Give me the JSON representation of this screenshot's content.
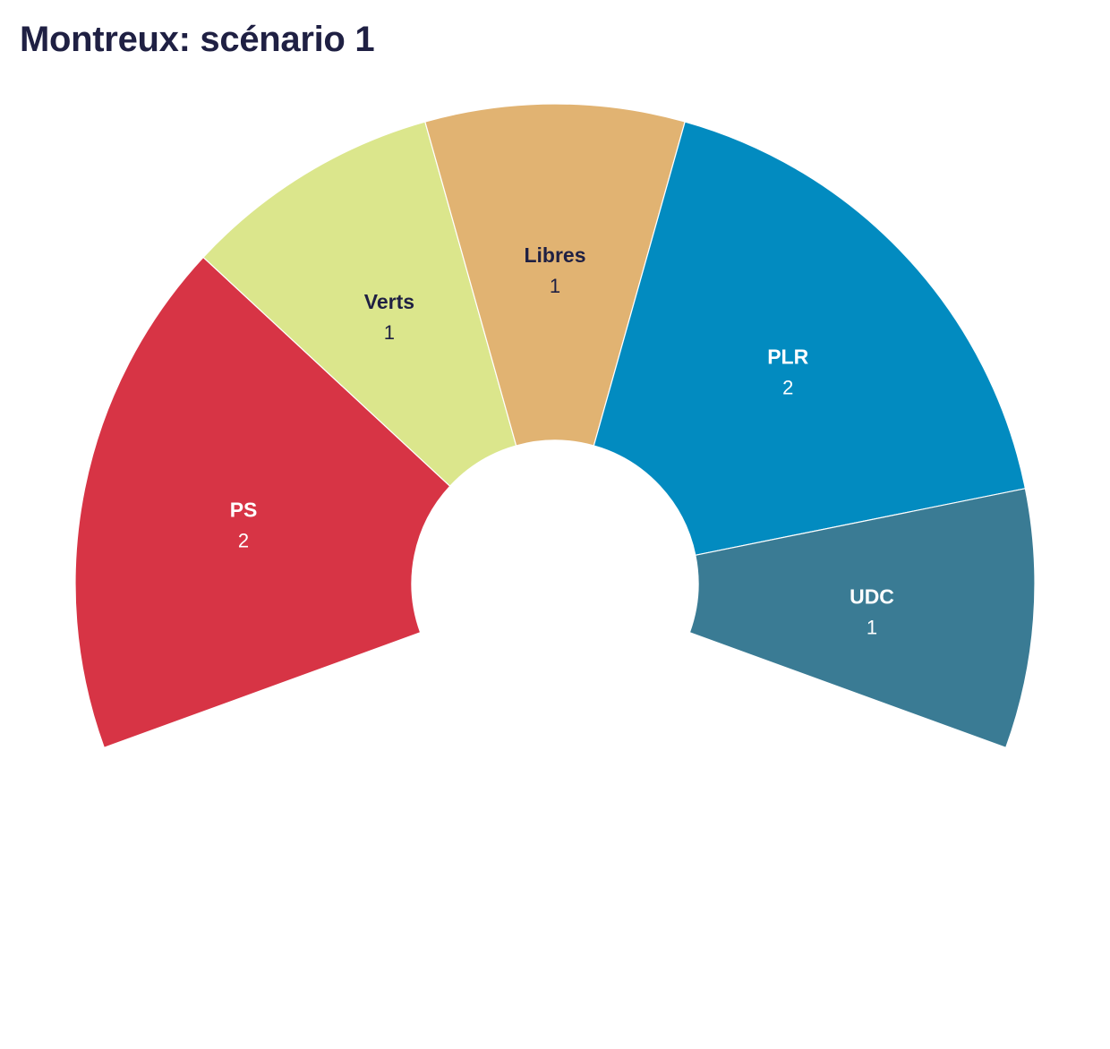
{
  "chart_data": {
    "type": "pie",
    "variant": "half-donut",
    "title": "Montreux: scénario 1",
    "total_seats": 7,
    "segments": [
      {
        "name": "PS",
        "value": 2,
        "color": "#d73445",
        "label_color": "#ffffff"
      },
      {
        "name": "Verts",
        "value": 1,
        "color": "#dbe68c",
        "label_color": "#1f2043"
      },
      {
        "name": "Libres",
        "value": 1,
        "color": "#e1b372",
        "label_color": "#1f2043"
      },
      {
        "name": "PLR",
        "value": 2,
        "color": "#028bc0",
        "label_color": "#ffffff"
      },
      {
        "name": "UDC",
        "value": 1,
        "color": "#3a7b94",
        "label_color": "#ffffff"
      }
    ],
    "start_angle_deg": -110,
    "end_angle_deg": 110
  }
}
